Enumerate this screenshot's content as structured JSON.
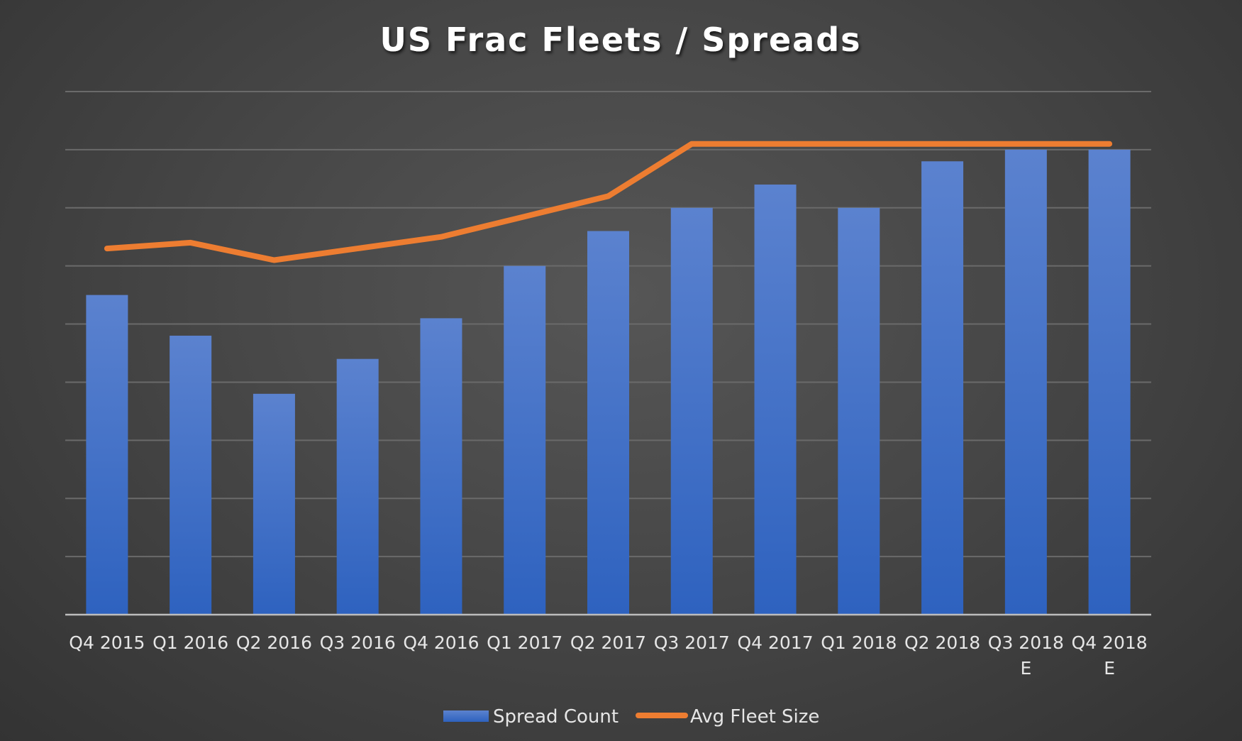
{
  "chart_data": {
    "type": "bar",
    "title": "US Frac Fleets / Spreads",
    "xlabel": "",
    "ylabel": "",
    "categories": [
      [
        "Q4 2015"
      ],
      [
        "Q1 2016"
      ],
      [
        "Q2 2016"
      ],
      [
        "Q3 2016"
      ],
      [
        "Q4 2016"
      ],
      [
        "Q1 2017"
      ],
      [
        "Q2 2017"
      ],
      [
        "Q3 2017"
      ],
      [
        "Q4 2017"
      ],
      [
        "Q1 2018"
      ],
      [
        "Q2 2018"
      ],
      [
        "Q3 2018",
        "E"
      ],
      [
        "Q4 2018",
        "E"
      ]
    ],
    "ylim": [
      0,
      9
    ],
    "y_axis_labels_shown": false,
    "grid": true,
    "legend_position": "bottom",
    "series": [
      {
        "name": "Spread Count",
        "type": "bar",
        "color": "#4472c4",
        "values": [
          5.5,
          4.8,
          3.8,
          4.4,
          5.1,
          6.0,
          6.6,
          7.0,
          7.4,
          7.0,
          7.8,
          8.0,
          8.0
        ]
      },
      {
        "name": "Avg Fleet Size",
        "type": "line",
        "color": "#ed7d31",
        "values": [
          6.3,
          6.4,
          6.1,
          6.3,
          6.5,
          6.85,
          7.2,
          8.1,
          8.1,
          8.1,
          8.1,
          8.1,
          8.1
        ]
      }
    ]
  }
}
